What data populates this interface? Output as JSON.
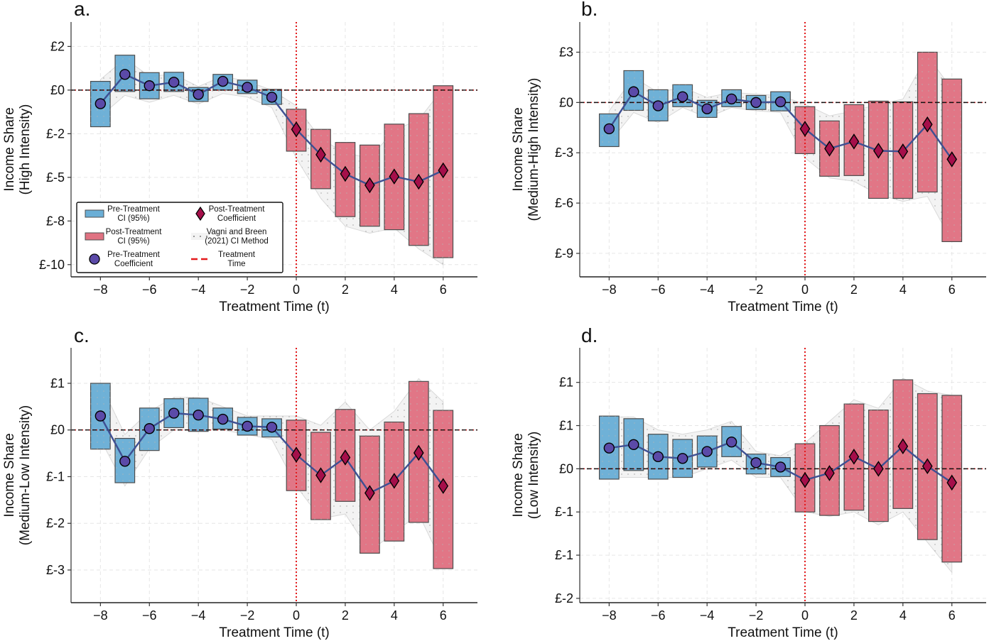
{
  "figure": {
    "colors": {
      "pre_ci": "#6aaed6",
      "post_ci": "#e07282",
      "pre_coef": "#5b4aa8",
      "post_coef": "#a50f4a",
      "coef_line": "#3e5093",
      "treatment_line": "#e41a1c",
      "zero_line": "#111111",
      "vb_band": "#d9d9d9"
    },
    "legend": {
      "items": [
        {
          "key": "pre_ci",
          "label_line1": "Pre-Treatment",
          "label_line2": "CI (95%)"
        },
        {
          "key": "post_ci",
          "label_line1": "Post-Treatment",
          "label_line2": "CI (95%)"
        },
        {
          "key": "pre_coef",
          "label_line1": "Pre-Treatment",
          "label_line2": "Coefficient"
        },
        {
          "key": "post_coef",
          "label_line1": "Post-Treatment",
          "label_line2": "Coefficient"
        },
        {
          "key": "vb",
          "label_line1": "Vagni and Breen",
          "label_line2": "(2021) CI Method"
        },
        {
          "key": "treat",
          "label_line1": "Treatment",
          "label_line2": "Time"
        }
      ]
    }
  },
  "chart_data": [
    {
      "type": "bar",
      "panel_label": "a.",
      "title": "",
      "xlabel": "Treatment Time (t)",
      "ylabel_line1": "Income Share",
      "ylabel_line2": "(High Intensity)",
      "x": [
        -8,
        -7,
        -6,
        -5,
        -4,
        -3,
        -2,
        -1,
        0,
        1,
        2,
        3,
        4,
        5,
        6
      ],
      "xticks": [
        -8,
        -6,
        -4,
        -2,
        0,
        2,
        4,
        6
      ],
      "xtick_labels": [
        "−8",
        "−6",
        "−4",
        "−2",
        "0",
        "2",
        "4",
        "6"
      ],
      "xlim": [
        -9.2,
        7.4
      ],
      "ylim": [
        -10.7,
        3.9
      ],
      "yticks": [
        2.5,
        0,
        -2.5,
        -5,
        -7.5,
        -10
      ],
      "ytick_labels": [
        "£2",
        "£0",
        "£-2",
        "£-5",
        "£-8",
        "£-10"
      ],
      "treatment_time": 0,
      "legend_position": "bottom-left",
      "coef": [
        -0.78,
        0.9,
        0.25,
        0.45,
        -0.25,
        0.5,
        0.16,
        -0.41,
        -2.25,
        -3.7,
        -4.8,
        -5.45,
        -4.95,
        -5.25,
        -4.6
      ],
      "ci_low": [
        -2.1,
        -0.08,
        -0.5,
        -0.08,
        -0.65,
        0.0,
        -0.2,
        -0.82,
        -3.5,
        -5.65,
        -7.25,
        -7.8,
        -8.0,
        -8.9,
        -9.6
      ],
      "ci_high": [
        0.5,
        2.0,
        1.0,
        1.02,
        0.15,
        0.9,
        0.57,
        0.04,
        -1.1,
        -2.25,
        -3.0,
        -3.15,
        -1.95,
        -1.35,
        0.25
      ],
      "vb_low": [
        -1.5,
        -0.3,
        -0.7,
        -0.3,
        -0.8,
        -0.2,
        -0.4,
        -1.0,
        -3.9,
        -6.2,
        -7.8,
        -8.2,
        -7.9,
        -9.1,
        -10.0
      ],
      "vb_high": [
        0.6,
        1.8,
        0.8,
        0.9,
        0.2,
        0.8,
        0.5,
        0.0,
        -0.9,
        -2.8,
        -3.6,
        -3.9,
        -2.3,
        -1.7,
        0.1
      ]
    },
    {
      "type": "bar",
      "panel_label": "b.",
      "title": "",
      "xlabel": "Treatment Time (t)",
      "ylabel_line1": "Income Share",
      "ylabel_line2": "(Medium-High Intensity)",
      "x": [
        -8,
        -7,
        -6,
        -5,
        -4,
        -3,
        -2,
        -1,
        0,
        1,
        2,
        3,
        4,
        5,
        6
      ],
      "xticks": [
        -8,
        -6,
        -4,
        -2,
        0,
        2,
        4,
        6
      ],
      "xtick_labels": [
        "−8",
        "−6",
        "−4",
        "−2",
        "0",
        "2",
        "4",
        "6"
      ],
      "xlim": [
        -9.2,
        7.4
      ],
      "ylim": [
        -10.4,
        4.8
      ],
      "yticks": [
        3,
        0,
        -3,
        -6,
        -9
      ],
      "ytick_labels": [
        "£3",
        "£0",
        "£-3",
        "£-6",
        "£-9"
      ],
      "treatment_time": 0,
      "coef": [
        -1.57,
        0.64,
        -0.2,
        0.34,
        -0.38,
        0.21,
        0.0,
        0.04,
        -1.57,
        -2.75,
        -2.33,
        -2.88,
        -2.92,
        -1.31,
        -3.39
      ],
      "ci_low": [
        -2.63,
        -0.47,
        -1.1,
        -0.25,
        -0.89,
        -0.25,
        -0.42,
        -0.5,
        -3.05,
        -4.4,
        -4.36,
        -5.72,
        -5.72,
        -5.34,
        -8.3
      ],
      "ci_high": [
        -0.68,
        1.9,
        0.76,
        1.06,
        0.13,
        0.76,
        0.42,
        0.64,
        -0.25,
        -1.1,
        -0.13,
        0.08,
        0.04,
        3.0,
        1.4
      ],
      "vb_low": [
        -2.4,
        -0.6,
        -1.2,
        -0.3,
        -0.9,
        -0.3,
        -0.5,
        -0.6,
        -3.3,
        -4.5,
        -4.7,
        -5.5,
        -5.9,
        -5.6,
        -8.3
      ],
      "vb_high": [
        -0.5,
        1.5,
        0.6,
        0.9,
        0.3,
        0.6,
        0.5,
        0.4,
        -0.1,
        -0.8,
        -0.5,
        -0.1,
        0.2,
        2.8,
        0.8
      ]
    },
    {
      "type": "bar",
      "panel_label": "c.",
      "title": "",
      "xlabel": "Treatment Time (t)",
      "ylabel_line1": "Income Share",
      "ylabel_line2": "(Medium-Low Intensity)",
      "x": [
        -8,
        -7,
        -6,
        -5,
        -4,
        -3,
        -2,
        -1,
        0,
        1,
        2,
        3,
        4,
        5,
        6
      ],
      "xticks": [
        -8,
        -6,
        -4,
        -2,
        0,
        2,
        4,
        6
      ],
      "xtick_labels": [
        "−8",
        "−6",
        "−4",
        "−2",
        "0",
        "2",
        "4",
        "6"
      ],
      "xlim": [
        -9.2,
        7.4
      ],
      "ylim": [
        -3.7,
        1.76
      ],
      "yticks": [
        1,
        0,
        -1,
        -2,
        -3
      ],
      "ytick_labels": [
        "£1",
        "£0",
        "£-1",
        "£-2",
        "£-3"
      ],
      "treatment_time": 0,
      "coef": [
        0.3,
        -0.67,
        0.03,
        0.36,
        0.32,
        0.23,
        0.08,
        0.06,
        -0.53,
        -0.97,
        -0.59,
        -1.35,
        -1.09,
        -0.49,
        -1.2
      ],
      "ci_low": [
        -0.41,
        -1.13,
        -0.44,
        0.05,
        -0.03,
        0.02,
        -0.11,
        -0.15,
        -1.3,
        -1.92,
        -1.53,
        -2.64,
        -2.38,
        -1.98,
        -2.97
      ],
      "ci_high": [
        1.0,
        -0.18,
        0.47,
        0.67,
        0.68,
        0.47,
        0.27,
        0.24,
        0.21,
        -0.05,
        0.44,
        -0.13,
        0.17,
        1.04,
        0.42
      ],
      "vb_low": [
        -0.2,
        -1.2,
        -0.4,
        0.0,
        0.0,
        0.0,
        -0.1,
        -0.2,
        -1.2,
        -1.9,
        -1.8,
        -2.6,
        -2.2,
        -1.8,
        -2.9
      ],
      "vb_high": [
        1.0,
        -0.1,
        0.4,
        0.7,
        0.7,
        0.5,
        0.3,
        0.3,
        0.3,
        0.1,
        0.6,
        0.0,
        0.4,
        1.1,
        0.6
      ]
    },
    {
      "type": "bar",
      "panel_label": "d.",
      "title": "",
      "xlabel": "Treatment Time (t)",
      "ylabel_line1": "Income Share",
      "ylabel_line2": "(Low Intensity)",
      "x": [
        -8,
        -7,
        -6,
        -5,
        -4,
        -3,
        -2,
        -1,
        0,
        1,
        2,
        3,
        4,
        5,
        6
      ],
      "xticks": [
        -8,
        -6,
        -4,
        -2,
        0,
        2,
        4,
        6
      ],
      "xtick_labels": [
        "−8",
        "−6",
        "−4",
        "−2",
        "0",
        "2",
        "4",
        "6"
      ],
      "xlim": [
        -9.2,
        7.4
      ],
      "ylim": [
        -1.55,
        1.4
      ],
      "yticks": [
        1.0,
        0.5,
        0,
        -0.5,
        -1.0,
        -1.5
      ],
      "ytick_labels": [
        "£1",
        "£1",
        "£0",
        "£-1",
        "£-1",
        "£-2"
      ],
      "treatment_time": 0,
      "coef": [
        0.24,
        0.28,
        0.14,
        0.12,
        0.2,
        0.31,
        0.07,
        0.02,
        -0.13,
        -0.05,
        0.14,
        0.0,
        0.26,
        0.03,
        -0.16
      ],
      "ci_low": [
        -0.12,
        -0.02,
        -0.12,
        -0.1,
        0.02,
        0.14,
        -0.06,
        -0.09,
        -0.5,
        -0.54,
        -0.48,
        -0.61,
        -0.46,
        -0.82,
        -1.08
      ],
      "ci_high": [
        0.61,
        0.58,
        0.4,
        0.34,
        0.38,
        0.49,
        0.17,
        0.13,
        0.29,
        0.5,
        0.75,
        0.68,
        1.03,
        0.87,
        0.85
      ],
      "vb_low": [
        -0.1,
        -0.1,
        -0.1,
        -0.1,
        0.0,
        0.1,
        -0.1,
        -0.1,
        -0.5,
        -0.55,
        -0.5,
        -0.65,
        -0.5,
        -0.85,
        -1.2
      ],
      "vb_high": [
        0.6,
        0.6,
        0.45,
        0.4,
        0.45,
        0.55,
        0.2,
        0.15,
        0.3,
        0.55,
        0.8,
        0.7,
        1.05,
        0.9,
        0.85
      ]
    }
  ]
}
